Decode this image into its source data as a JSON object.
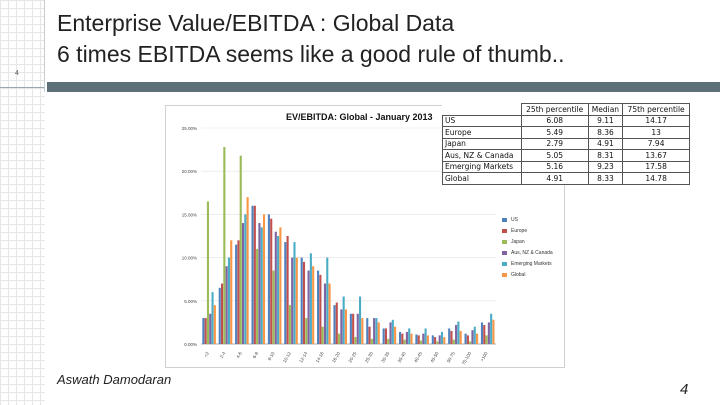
{
  "slide": {
    "title_line1": "Enterprise Value/EBITDA : Global Data",
    "title_line2": "6 times EBITDA seems like a good rule of thumb..",
    "mini_number": "4",
    "author": "Aswath Damodaran",
    "page_number": "4"
  },
  "table": {
    "headers": [
      "",
      "25th percentile",
      "Median",
      "75th percentile"
    ],
    "rows": [
      {
        "region": "US",
        "p25": "6.08",
        "median": "9.11",
        "p75": "14.17"
      },
      {
        "region": "Europe",
        "p25": "5.49",
        "median": "8.36",
        "p75": "13"
      },
      {
        "region": "Japan",
        "p25": "2.79",
        "median": "4.91",
        "p75": "7.94"
      },
      {
        "region": "Aus, NZ & Canada",
        "p25": "5.05",
        "median": "8.31",
        "p75": "13.67"
      },
      {
        "region": "Emerging Markets",
        "p25": "5.16",
        "median": "9.23",
        "p75": "17.58"
      },
      {
        "region": "Global",
        "p25": "4.91",
        "median": "8.33",
        "p75": "14.78"
      }
    ]
  },
  "chart_data": {
    "type": "bar",
    "title": "EV/EBITDA: Global - January 2013",
    "xlabel": "",
    "ylabel": "",
    "ylim": [
      0,
      0.25
    ],
    "yticks": [
      "0.00%",
      "5.00%",
      "10.00%",
      "15.00%",
      "20.00%",
      "25.00%"
    ],
    "ytick_values": [
      0,
      0.05,
      0.1,
      0.15,
      0.2,
      0.25
    ],
    "categories": [
      "<2",
      "2-4",
      "4-6",
      "6-8",
      "8-10",
      "10-12",
      "12-14",
      "14-16",
      "16-20",
      "20-25",
      "25-30",
      "30-35",
      "35-40",
      "40-45",
      "45-50",
      "50-75",
      "75-100",
      ">100"
    ],
    "legend_position": "right",
    "series": [
      {
        "name": "US",
        "color": "#4f81bd",
        "values": [
          0.03,
          0.065,
          0.115,
          0.16,
          0.15,
          0.118,
          0.1,
          0.085,
          0.045,
          0.035,
          0.03,
          0.018,
          0.014,
          0.011,
          0.01,
          0.018,
          0.012,
          0.025
        ]
      },
      {
        "name": "Europe",
        "color": "#c0504d",
        "values": [
          0.03,
          0.07,
          0.12,
          0.16,
          0.145,
          0.125,
          0.095,
          0.08,
          0.048,
          0.035,
          0.02,
          0.018,
          0.012,
          0.01,
          0.008,
          0.015,
          0.01,
          0.022
        ]
      },
      {
        "name": "Japan",
        "color": "#9bbb59",
        "values": [
          0.165,
          0.228,
          0.218,
          0.11,
          0.085,
          0.045,
          0.03,
          0.02,
          0.012,
          0.008,
          0.006,
          0.006,
          0.005,
          0.004,
          0.003,
          0.005,
          0.003,
          0.01
        ]
      },
      {
        "name": "Aus, NZ & Canada",
        "color": "#8064a2",
        "values": [
          0.035,
          0.09,
          0.14,
          0.14,
          0.13,
          0.1,
          0.085,
          0.07,
          0.04,
          0.035,
          0.03,
          0.025,
          0.014,
          0.012,
          0.01,
          0.022,
          0.016,
          0.025
        ]
      },
      {
        "name": "Emerging Markets",
        "color": "#4bacc6",
        "values": [
          0.06,
          0.1,
          0.15,
          0.135,
          0.125,
          0.118,
          0.105,
          0.1,
          0.055,
          0.055,
          0.03,
          0.028,
          0.018,
          0.018,
          0.014,
          0.026,
          0.02,
          0.035
        ]
      },
      {
        "name": "Global",
        "color": "#f79646",
        "values": [
          0.045,
          0.12,
          0.17,
          0.15,
          0.135,
          0.1,
          0.09,
          0.07,
          0.04,
          0.03,
          0.025,
          0.02,
          0.012,
          0.01,
          0.008,
          0.015,
          0.012,
          0.028
        ]
      }
    ]
  }
}
